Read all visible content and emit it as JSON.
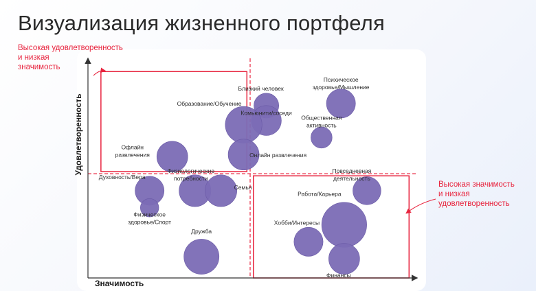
{
  "title": "Визуализация жизненного портфеля",
  "callouts": {
    "top_left": [
      "Высокая удовлетворенность",
      "и низкая",
      "значимость"
    ],
    "right": [
      "Высокая значимость",
      "и низкая",
      "удовлетворенность"
    ]
  },
  "colors": {
    "bubble": "#7b6bb5",
    "bubble_edge": "#6a5aa6",
    "highlight": "#e8253f",
    "axis": "#333333"
  },
  "chart_data": {
    "type": "scatter",
    "variant": "bubble",
    "title": "Визуализация жизненного портфеля",
    "xlabel": "Значимость",
    "ylabel": "Удовлетворенность",
    "xlim": [
      0,
      10
    ],
    "ylim": [
      0,
      10
    ],
    "grid": false,
    "threshold_lines": {
      "x": 5,
      "y": 4.9
    },
    "highlight_regions": [
      {
        "x": [
          0.4,
          4.9
        ],
        "y": [
          5.0,
          9.7
        ]
      },
      {
        "x": [
          5.1,
          9.9
        ],
        "y": [
          0.0,
          4.8
        ]
      }
    ],
    "points": [
      {
        "label": "Психическое здоровье/Мышление",
        "x": 7.8,
        "y": 8.2,
        "size": 3.0
      },
      {
        "label": "Близкий человек",
        "x": 5.5,
        "y": 8.1,
        "size": 2.2
      },
      {
        "label": "Комьюнити/соседи",
        "x": 5.5,
        "y": 7.4,
        "size": 3.2
      },
      {
        "label": "Образование/Обучение",
        "x": 4.8,
        "y": 7.2,
        "size": 4.8
      },
      {
        "label": "Общественная активность",
        "x": 7.2,
        "y": 6.6,
        "size": 1.6
      },
      {
        "label": "Офлайн развлечения",
        "x": 2.6,
        "y": 5.7,
        "size": 3.4
      },
      {
        "label": "Онлайн развлечения",
        "x": 4.8,
        "y": 5.8,
        "size": 3.4
      },
      {
        "label": "Духовность/Вера",
        "x": 1.9,
        "y": 4.1,
        "size": 3.0
      },
      {
        "label": "Физиологические потребности",
        "x": 3.3,
        "y": 4.1,
        "size": 3.6
      },
      {
        "label": "Семья",
        "x": 4.1,
        "y": 4.1,
        "size": 3.6
      },
      {
        "label": "Физическое здоровье/Спорт",
        "x": 1.9,
        "y": 3.3,
        "size": 1.2
      },
      {
        "label": "Повседневная деятельность",
        "x": 8.6,
        "y": 4.1,
        "size": 2.8
      },
      {
        "label": "Работа/Карьера",
        "x": 7.9,
        "y": 2.5,
        "size": 7.2
      },
      {
        "label": "Хобби/Интересы",
        "x": 6.8,
        "y": 1.7,
        "size": 3.0
      },
      {
        "label": "Дружба",
        "x": 3.5,
        "y": 1.0,
        "size": 4.4
      },
      {
        "label": "Финансы",
        "x": 7.9,
        "y": 0.9,
        "size": 3.4
      }
    ]
  }
}
